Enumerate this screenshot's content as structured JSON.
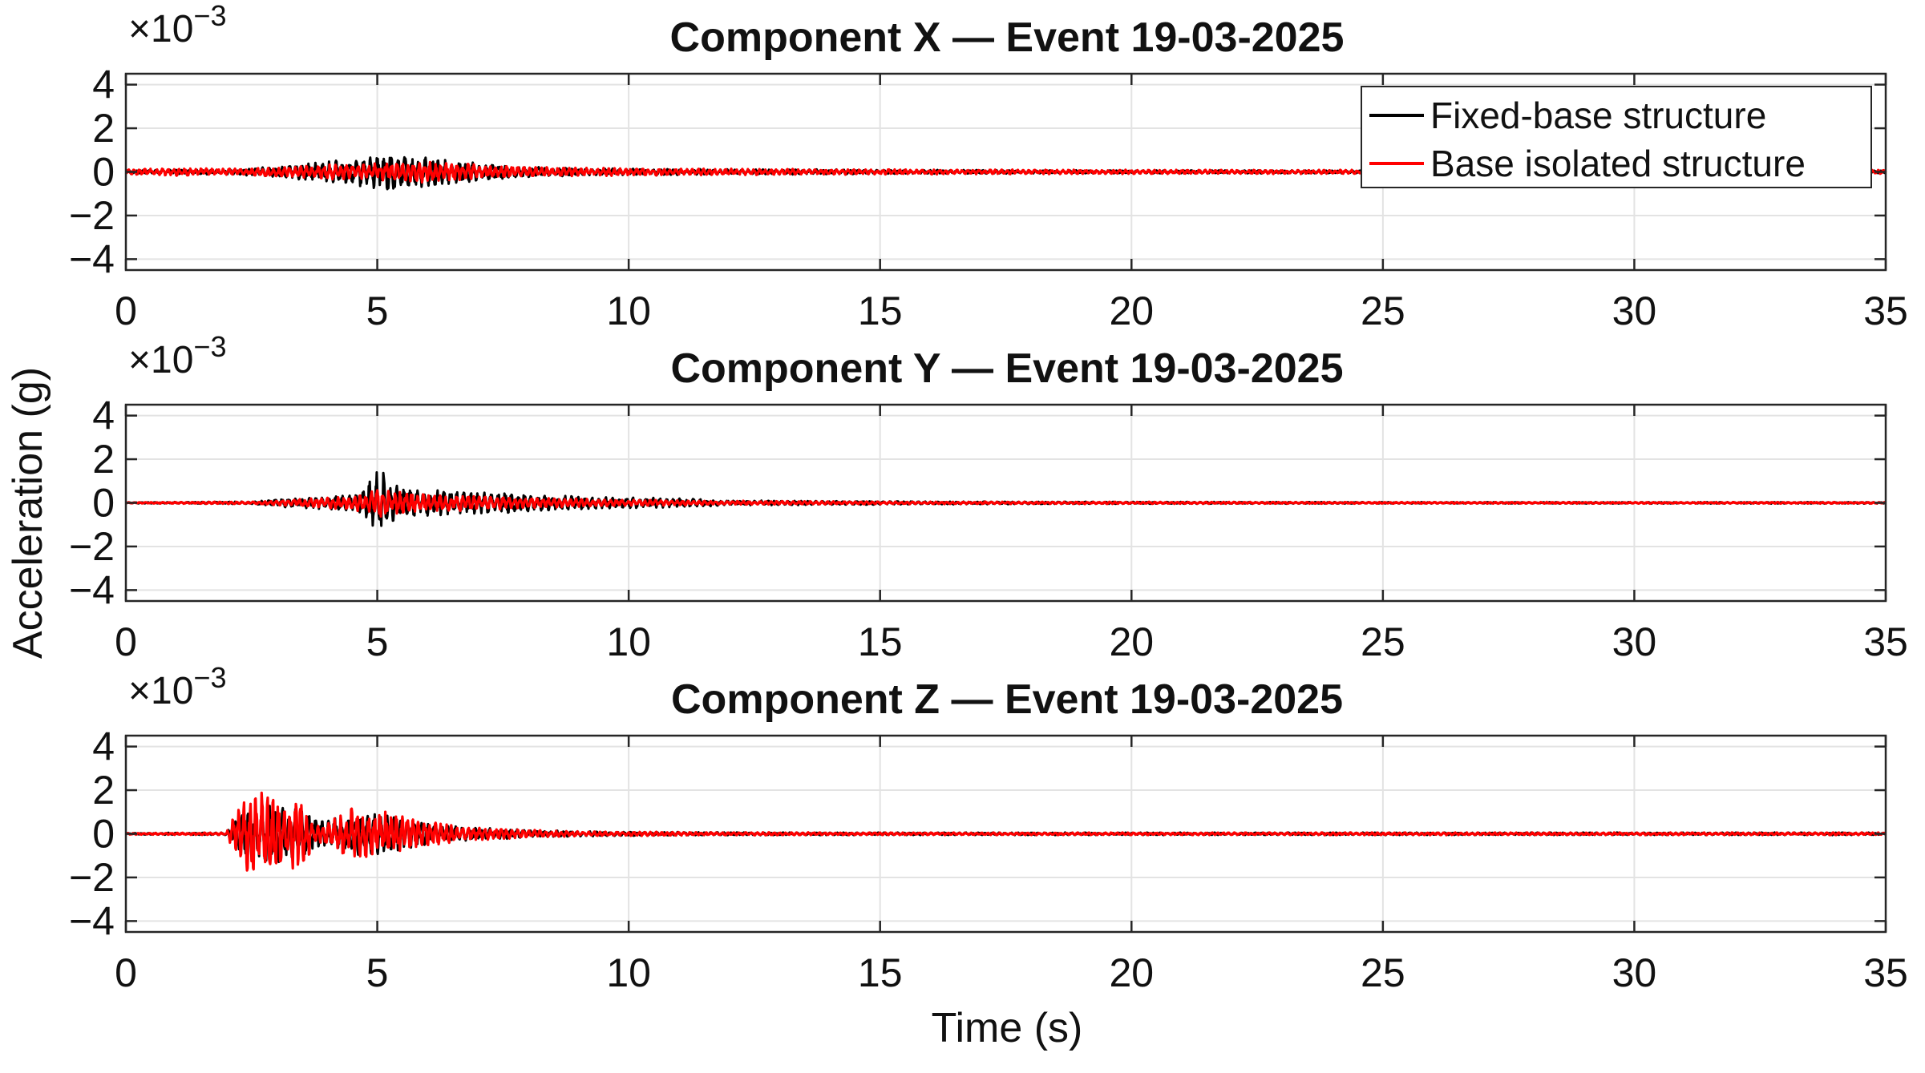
{
  "figure": {
    "ylabel": "Acceleration (g)",
    "xlabel": "Time (s)",
    "multiplier": {
      "base": "×10",
      "exponent": "−3"
    },
    "legend": {
      "placement": "top-right of first panel",
      "entries": [
        {
          "label": "Fixed-base structure",
          "color": "#000000"
        },
        {
          "label": "Base isolated structure",
          "color": "#ff0000"
        }
      ]
    }
  },
  "chart_data": [
    {
      "type": "line",
      "title": "Component X — Event 19-03-2025",
      "xlim": [
        0,
        35
      ],
      "ylim": [
        -4.5,
        4.5
      ],
      "xticks": [
        0,
        5,
        10,
        15,
        20,
        25,
        30,
        35
      ],
      "yticks": [
        4,
        2,
        0,
        -2,
        -4
      ],
      "ytick_labels": [
        "4",
        "2",
        "0",
        "−2",
        "−4"
      ],
      "grid": true,
      "series": [
        {
          "name": "Fixed-base structure",
          "color": "#000000",
          "x": [
            0,
            1,
            2,
            3,
            3.5,
            4,
            4.5,
            5,
            5.2,
            5.5,
            6,
            6.5,
            7,
            7.5,
            8,
            9,
            10,
            11,
            12,
            13,
            14,
            15,
            20,
            25,
            30,
            35
          ],
          "envelope": [
            0.05,
            0.1,
            0.1,
            0.2,
            0.3,
            0.4,
            0.5,
            0.7,
            0.9,
            0.6,
            0.6,
            0.45,
            0.35,
            0.3,
            0.2,
            0.15,
            0.12,
            0.12,
            0.1,
            0.1,
            0.1,
            0.08,
            0.06,
            0.06,
            0.05,
            0.05
          ]
        },
        {
          "name": "Base isolated structure",
          "color": "#ff0000",
          "x": [
            0,
            1,
            2,
            3,
            3.5,
            4,
            4.5,
            5,
            5.5,
            6,
            6.5,
            7,
            8,
            10,
            12,
            15,
            20,
            25,
            30,
            35
          ],
          "envelope": [
            0.1,
            0.15,
            0.12,
            0.18,
            0.22,
            0.28,
            0.32,
            0.35,
            0.4,
            0.4,
            0.35,
            0.3,
            0.18,
            0.15,
            0.12,
            0.1,
            0.08,
            0.08,
            0.08,
            0.08
          ]
        }
      ]
    },
    {
      "type": "line",
      "title": "Component Y — Event 19-03-2025",
      "xlim": [
        0,
        35
      ],
      "ylim": [
        -4.5,
        4.5
      ],
      "xticks": [
        0,
        5,
        10,
        15,
        20,
        25,
        30,
        35
      ],
      "yticks": [
        4,
        2,
        0,
        -2,
        -4
      ],
      "ytick_labels": [
        "4",
        "2",
        "0",
        "−2",
        "−4"
      ],
      "grid": true,
      "series": [
        {
          "name": "Fixed-base structure",
          "color": "#000000",
          "x": [
            0,
            2.5,
            3,
            3.5,
            4,
            4.5,
            4.8,
            5,
            5.3,
            5.6,
            6,
            7,
            8,
            9,
            10,
            11,
            12,
            14,
            16,
            20,
            25,
            30,
            35
          ],
          "envelope": [
            0.02,
            0.05,
            0.15,
            0.2,
            0.25,
            0.35,
            0.6,
            1.5,
            0.8,
            0.6,
            0.5,
            0.45,
            0.35,
            0.25,
            0.2,
            0.18,
            0.1,
            0.08,
            0.06,
            0.04,
            0.03,
            0.03,
            0.03
          ]
        },
        {
          "name": "Base isolated structure",
          "color": "#ff0000",
          "x": [
            0,
            2.5,
            3,
            4,
            4.8,
            5,
            5.5,
            6,
            7,
            8,
            10,
            12,
            15,
            20,
            25,
            30,
            35
          ],
          "envelope": [
            0.02,
            0.05,
            0.1,
            0.2,
            0.35,
            0.6,
            0.45,
            0.35,
            0.3,
            0.2,
            0.12,
            0.08,
            0.05,
            0.04,
            0.03,
            0.03,
            0.03
          ]
        }
      ]
    },
    {
      "type": "line",
      "title": "Component Z — Event 19-03-2025",
      "xlim": [
        0,
        35
      ],
      "ylim": [
        -4.5,
        4.5
      ],
      "xticks": [
        0,
        5,
        10,
        15,
        20,
        25,
        30,
        35
      ],
      "yticks": [
        4,
        2,
        0,
        -2,
        -4
      ],
      "ytick_labels": [
        "4",
        "2",
        "0",
        "−2",
        "−4"
      ],
      "grid": true,
      "series": [
        {
          "name": "Fixed-base structure",
          "color": "#000000",
          "x": [
            0,
            2,
            2.2,
            2.6,
            3,
            3.4,
            3.8,
            4.2,
            4.6,
            5,
            5.5,
            6,
            6.5,
            7,
            7.5,
            8,
            9,
            10,
            12,
            15,
            20,
            25,
            30,
            35
          ],
          "envelope": [
            0.03,
            0.05,
            0.6,
            1.3,
            1.2,
            1.0,
            0.6,
            0.6,
            0.8,
            0.8,
            0.6,
            0.4,
            0.3,
            0.25,
            0.2,
            0.15,
            0.1,
            0.08,
            0.06,
            0.05,
            0.05,
            0.05,
            0.05,
            0.05
          ]
        },
        {
          "name": "Base isolated structure",
          "color": "#ff0000",
          "x": [
            0,
            2,
            2.2,
            2.5,
            2.8,
            3.2,
            3.5,
            3.8,
            4.2,
            4.5,
            5,
            5.5,
            6,
            6.5,
            7,
            7.5,
            8,
            9,
            10,
            12,
            15,
            20,
            25,
            30,
            35
          ],
          "envelope": [
            0.03,
            0.05,
            0.9,
            1.8,
            1.6,
            1.4,
            1.3,
            0.3,
            0.7,
            1.1,
            1.0,
            0.7,
            0.5,
            0.35,
            0.25,
            0.2,
            0.15,
            0.1,
            0.08,
            0.06,
            0.05,
            0.05,
            0.05,
            0.05,
            0.05
          ]
        }
      ]
    }
  ]
}
